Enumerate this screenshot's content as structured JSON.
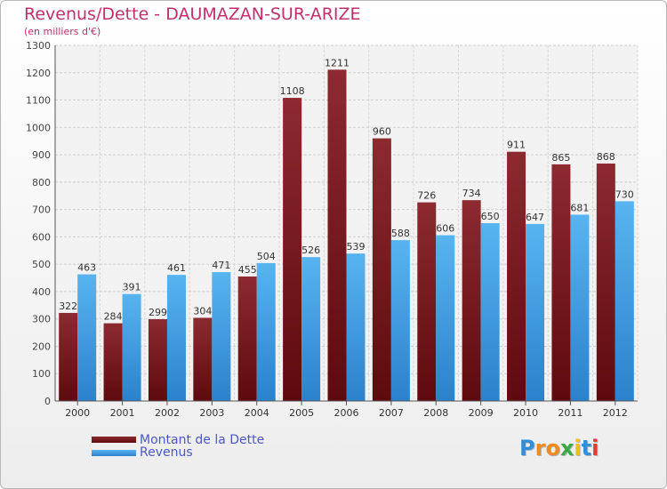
{
  "header": {
    "title": "Revenus/Dette - DAUMAZAN-SUR-ARIZE",
    "subtitle": "(en milliers d'€)"
  },
  "legend": {
    "items": [
      {
        "label": "Montant de la Dette",
        "color": "#7a1418"
      },
      {
        "label": "Revenus",
        "color": "#3ea0e6"
      }
    ]
  },
  "logo": {
    "text": "Proxiti"
  },
  "chart_data": {
    "type": "bar",
    "title": "Revenus/Dette - DAUMAZAN-SUR-ARIZE",
    "ylabel": "(en milliers d'€)",
    "categories": [
      "2000",
      "2001",
      "2002",
      "2003",
      "2004",
      "2005",
      "2006",
      "2007",
      "2008",
      "2009",
      "2010",
      "2011",
      "2012"
    ],
    "series": [
      {
        "name": "Montant de la Dette",
        "color": "#7a1418",
        "values": [
          322,
          284,
          299,
          304,
          455,
          1108,
          1211,
          960,
          726,
          734,
          911,
          865,
          868
        ]
      },
      {
        "name": "Revenus",
        "color": "#3ea0e6",
        "values": [
          463,
          391,
          461,
          471,
          504,
          526,
          539,
          588,
          606,
          650,
          647,
          681,
          730
        ]
      }
    ],
    "ylim": [
      0,
      1300
    ],
    "yticks": [
      0,
      100,
      200,
      300,
      400,
      500,
      600,
      700,
      800,
      900,
      1000,
      1100,
      1200,
      1300
    ],
    "grid": true,
    "legend_position": "bottom-left"
  }
}
